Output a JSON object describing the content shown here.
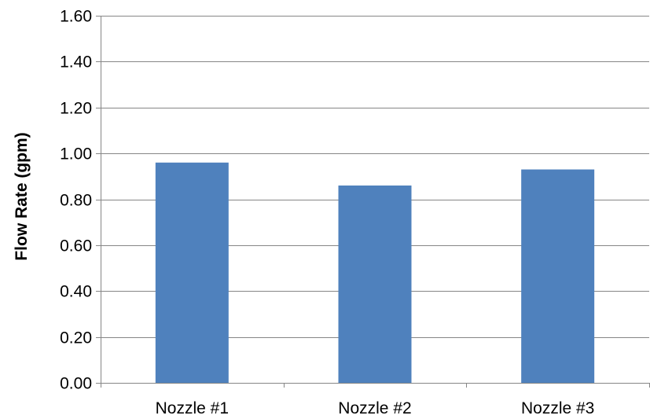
{
  "chart_data": {
    "type": "bar",
    "title": "",
    "xlabel": "",
    "ylabel": "Flow Rate (gpm)",
    "categories": [
      "Nozzle #1",
      "Nozzle #2",
      "Nozzle #3"
    ],
    "values": [
      0.96,
      0.86,
      0.93
    ],
    "ylim": [
      0,
      1.6
    ],
    "yticks": [
      "0.00",
      "0.20",
      "0.40",
      "0.60",
      "0.80",
      "1.00",
      "1.20",
      "1.40",
      "1.60"
    ],
    "grid": true,
    "legend": "none",
    "colors": {
      "bar": "#4F81BD",
      "grid": "#868686",
      "axis": "#868686"
    }
  }
}
